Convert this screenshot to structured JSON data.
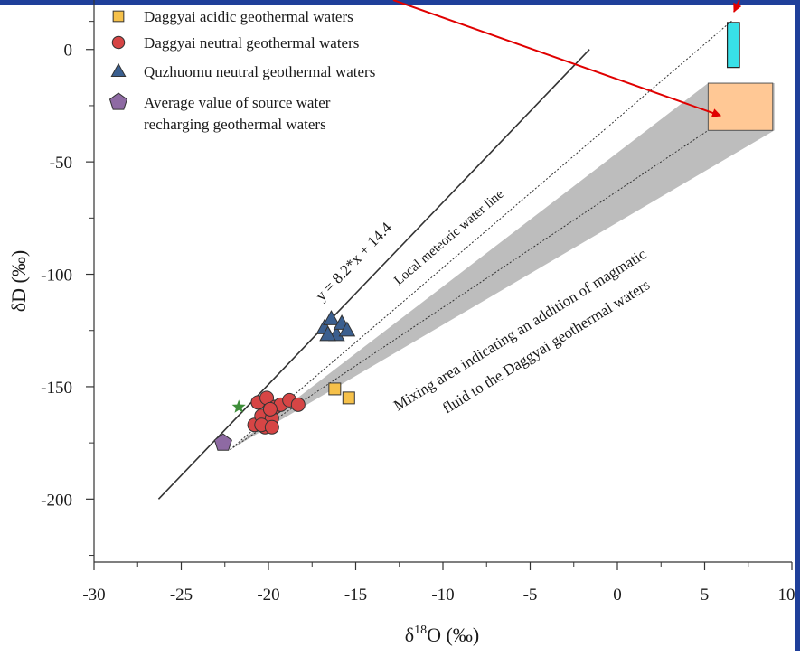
{
  "colors": {
    "frame": "#1f3f9a",
    "axis": "#333333",
    "acidic": "#f6c14a",
    "neutral": "#d64545",
    "quzhuomu": "#3b5f8f",
    "source": "#8e6aa3",
    "star": "#3e8e3a",
    "mixing_area": "#bdbdbd",
    "seawater_box": "#ffc895",
    "magmatic_box": "#38e0e8",
    "arrow": "#e00000"
  },
  "chart_data": {
    "type": "scatter",
    "xlabel": "δ18O (‰)",
    "ylabel": "δD (‰)",
    "xlim": [
      -30,
      10
    ],
    "ylim": [
      -228,
      22
    ],
    "x_ticks": [
      -30,
      -25,
      -20,
      -15,
      -10,
      -5,
      0,
      5,
      10
    ],
    "x_tick_labels": [
      "-30",
      "-25",
      "-20",
      "-15",
      "-10",
      "-5",
      "0",
      "5",
      "10"
    ],
    "y_ticks": [
      0,
      -50,
      -100,
      -150,
      -200
    ],
    "y_tick_labels": [
      "0",
      "-50",
      "-100",
      "-150",
      "-200"
    ],
    "legend_position": "top-left",
    "legend": [
      {
        "label": "Daggyai acidic geothermal waters",
        "marker": "square"
      },
      {
        "label": "Daggyai neutral geothermal waters",
        "marker": "circle"
      },
      {
        "label": "Quzhuomu neutral geothermal waters",
        "marker": "triangle"
      },
      {
        "label": "Average value of source water",
        "label2": "recharging geothermal waters",
        "marker": "pentagon"
      }
    ],
    "series": [
      {
        "name": "Daggyai acidic geothermal waters",
        "marker": "square",
        "points": [
          [
            -16.2,
            -151
          ],
          [
            -15.4,
            -155
          ]
        ]
      },
      {
        "name": "Daggyai neutral geothermal waters",
        "marker": "circle",
        "points": [
          [
            -20.8,
            -167
          ],
          [
            -20.4,
            -163
          ],
          [
            -20.2,
            -168
          ],
          [
            -19.8,
            -164
          ],
          [
            -20.6,
            -157
          ],
          [
            -20.1,
            -155
          ],
          [
            -19.6,
            -159
          ],
          [
            -19.3,
            -158
          ],
          [
            -18.8,
            -156
          ],
          [
            -18.3,
            -158
          ],
          [
            -20.4,
            -167
          ],
          [
            -19.8,
            -168
          ],
          [
            -19.9,
            -160
          ]
        ]
      },
      {
        "name": "Quzhuomu neutral geothermal waters",
        "marker": "triangle",
        "points": [
          [
            -16.8,
            -124
          ],
          [
            -16.4,
            -120
          ],
          [
            -16.1,
            -127
          ],
          [
            -15.8,
            -122
          ],
          [
            -15.5,
            -125
          ],
          [
            -16.6,
            -127
          ]
        ]
      },
      {
        "name": "Average value of source water recharging geothermal waters",
        "marker": "pentagon",
        "points": [
          [
            -22.6,
            -175
          ]
        ]
      },
      {
        "marker": "star",
        "points": [
          [
            -21.7,
            -159
          ]
        ]
      }
    ],
    "lines": [
      {
        "label": "y = 8.2*x + 14.4",
        "label2": "Local meteoric water line",
        "from": [
          -26.3,
          -200
        ],
        "to": [
          -1.6,
          0
        ]
      },
      {
        "from": [
          -22.2,
          -178
        ],
        "to": [
          6.6,
          13
        ]
      },
      {
        "from": [
          -22.2,
          -178
        ],
        "to": [
          5.2,
          -36
        ]
      }
    ],
    "mixing_area": {
      "label": "Mixing area indicating an addition of magmatic",
      "label2": "fluid to the Daggyai geothermal waters",
      "polygon": [
        [
          -22.2,
          -178
        ],
        [
          5.2,
          -15
        ],
        [
          9,
          -15
        ],
        [
          9,
          -36
        ]
      ]
    },
    "boxes": [
      {
        "x0": 5.2,
        "x1": 8.9,
        "y0": -36,
        "y1": -15
      },
      {
        "x0": 6.3,
        "x1": 7.0,
        "y0": -8,
        "y1": 12
      }
    ]
  }
}
